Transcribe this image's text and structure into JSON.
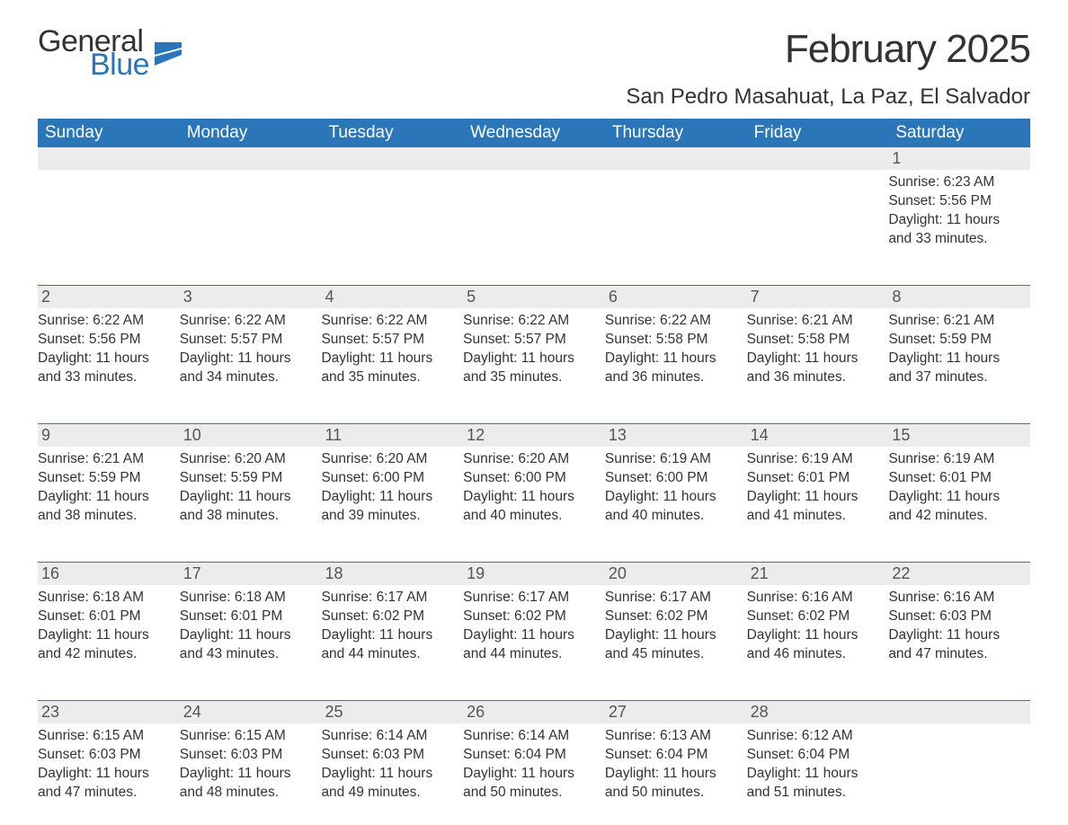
{
  "logo": {
    "text1": "General",
    "text2": "Blue",
    "icon_color": "#2a76b8"
  },
  "header": {
    "month_title": "February 2025",
    "location": "San Pedro Masahuat, La Paz, El Salvador"
  },
  "colors": {
    "header_bg": "#2a76b8",
    "header_text": "#ffffff",
    "numrow_bg": "#ececec",
    "border": "#2a76b8",
    "body_text": "#333333"
  },
  "typography": {
    "title_fontsize": 44,
    "location_fontsize": 24,
    "weekday_fontsize": 19,
    "daynum_fontsize": 18,
    "body_fontsize": 15.5,
    "font_family": "Arial"
  },
  "weekdays": [
    "Sunday",
    "Monday",
    "Tuesday",
    "Wednesday",
    "Thursday",
    "Friday",
    "Saturday"
  ],
  "calendar": {
    "type": "calendar-table",
    "columns": 7,
    "rows": 5,
    "weeks": [
      [
        {
          "day": ""
        },
        {
          "day": ""
        },
        {
          "day": ""
        },
        {
          "day": ""
        },
        {
          "day": ""
        },
        {
          "day": ""
        },
        {
          "day": "1",
          "sunrise": "Sunrise: 6:23 AM",
          "sunset": "Sunset: 5:56 PM",
          "daylight1": "Daylight: 11 hours",
          "daylight2": "and 33 minutes."
        }
      ],
      [
        {
          "day": "2",
          "sunrise": "Sunrise: 6:22 AM",
          "sunset": "Sunset: 5:56 PM",
          "daylight1": "Daylight: 11 hours",
          "daylight2": "and 33 minutes."
        },
        {
          "day": "3",
          "sunrise": "Sunrise: 6:22 AM",
          "sunset": "Sunset: 5:57 PM",
          "daylight1": "Daylight: 11 hours",
          "daylight2": "and 34 minutes."
        },
        {
          "day": "4",
          "sunrise": "Sunrise: 6:22 AM",
          "sunset": "Sunset: 5:57 PM",
          "daylight1": "Daylight: 11 hours",
          "daylight2": "and 35 minutes."
        },
        {
          "day": "5",
          "sunrise": "Sunrise: 6:22 AM",
          "sunset": "Sunset: 5:57 PM",
          "daylight1": "Daylight: 11 hours",
          "daylight2": "and 35 minutes."
        },
        {
          "day": "6",
          "sunrise": "Sunrise: 6:22 AM",
          "sunset": "Sunset: 5:58 PM",
          "daylight1": "Daylight: 11 hours",
          "daylight2": "and 36 minutes."
        },
        {
          "day": "7",
          "sunrise": "Sunrise: 6:21 AM",
          "sunset": "Sunset: 5:58 PM",
          "daylight1": "Daylight: 11 hours",
          "daylight2": "and 36 minutes."
        },
        {
          "day": "8",
          "sunrise": "Sunrise: 6:21 AM",
          "sunset": "Sunset: 5:59 PM",
          "daylight1": "Daylight: 11 hours",
          "daylight2": "and 37 minutes."
        }
      ],
      [
        {
          "day": "9",
          "sunrise": "Sunrise: 6:21 AM",
          "sunset": "Sunset: 5:59 PM",
          "daylight1": "Daylight: 11 hours",
          "daylight2": "and 38 minutes."
        },
        {
          "day": "10",
          "sunrise": "Sunrise: 6:20 AM",
          "sunset": "Sunset: 5:59 PM",
          "daylight1": "Daylight: 11 hours",
          "daylight2": "and 38 minutes."
        },
        {
          "day": "11",
          "sunrise": "Sunrise: 6:20 AM",
          "sunset": "Sunset: 6:00 PM",
          "daylight1": "Daylight: 11 hours",
          "daylight2": "and 39 minutes."
        },
        {
          "day": "12",
          "sunrise": "Sunrise: 6:20 AM",
          "sunset": "Sunset: 6:00 PM",
          "daylight1": "Daylight: 11 hours",
          "daylight2": "and 40 minutes."
        },
        {
          "day": "13",
          "sunrise": "Sunrise: 6:19 AM",
          "sunset": "Sunset: 6:00 PM",
          "daylight1": "Daylight: 11 hours",
          "daylight2": "and 40 minutes."
        },
        {
          "day": "14",
          "sunrise": "Sunrise: 6:19 AM",
          "sunset": "Sunset: 6:01 PM",
          "daylight1": "Daylight: 11 hours",
          "daylight2": "and 41 minutes."
        },
        {
          "day": "15",
          "sunrise": "Sunrise: 6:19 AM",
          "sunset": "Sunset: 6:01 PM",
          "daylight1": "Daylight: 11 hours",
          "daylight2": "and 42 minutes."
        }
      ],
      [
        {
          "day": "16",
          "sunrise": "Sunrise: 6:18 AM",
          "sunset": "Sunset: 6:01 PM",
          "daylight1": "Daylight: 11 hours",
          "daylight2": "and 42 minutes."
        },
        {
          "day": "17",
          "sunrise": "Sunrise: 6:18 AM",
          "sunset": "Sunset: 6:01 PM",
          "daylight1": "Daylight: 11 hours",
          "daylight2": "and 43 minutes."
        },
        {
          "day": "18",
          "sunrise": "Sunrise: 6:17 AM",
          "sunset": "Sunset: 6:02 PM",
          "daylight1": "Daylight: 11 hours",
          "daylight2": "and 44 minutes."
        },
        {
          "day": "19",
          "sunrise": "Sunrise: 6:17 AM",
          "sunset": "Sunset: 6:02 PM",
          "daylight1": "Daylight: 11 hours",
          "daylight2": "and 44 minutes."
        },
        {
          "day": "20",
          "sunrise": "Sunrise: 6:17 AM",
          "sunset": "Sunset: 6:02 PM",
          "daylight1": "Daylight: 11 hours",
          "daylight2": "and 45 minutes."
        },
        {
          "day": "21",
          "sunrise": "Sunrise: 6:16 AM",
          "sunset": "Sunset: 6:02 PM",
          "daylight1": "Daylight: 11 hours",
          "daylight2": "and 46 minutes."
        },
        {
          "day": "22",
          "sunrise": "Sunrise: 6:16 AM",
          "sunset": "Sunset: 6:03 PM",
          "daylight1": "Daylight: 11 hours",
          "daylight2": "and 47 minutes."
        }
      ],
      [
        {
          "day": "23",
          "sunrise": "Sunrise: 6:15 AM",
          "sunset": "Sunset: 6:03 PM",
          "daylight1": "Daylight: 11 hours",
          "daylight2": "and 47 minutes."
        },
        {
          "day": "24",
          "sunrise": "Sunrise: 6:15 AM",
          "sunset": "Sunset: 6:03 PM",
          "daylight1": "Daylight: 11 hours",
          "daylight2": "and 48 minutes."
        },
        {
          "day": "25",
          "sunrise": "Sunrise: 6:14 AM",
          "sunset": "Sunset: 6:03 PM",
          "daylight1": "Daylight: 11 hours",
          "daylight2": "and 49 minutes."
        },
        {
          "day": "26",
          "sunrise": "Sunrise: 6:14 AM",
          "sunset": "Sunset: 6:04 PM",
          "daylight1": "Daylight: 11 hours",
          "daylight2": "and 50 minutes."
        },
        {
          "day": "27",
          "sunrise": "Sunrise: 6:13 AM",
          "sunset": "Sunset: 6:04 PM",
          "daylight1": "Daylight: 11 hours",
          "daylight2": "and 50 minutes."
        },
        {
          "day": "28",
          "sunrise": "Sunrise: 6:12 AM",
          "sunset": "Sunset: 6:04 PM",
          "daylight1": "Daylight: 11 hours",
          "daylight2": "and 51 minutes."
        },
        {
          "day": ""
        }
      ]
    ]
  }
}
